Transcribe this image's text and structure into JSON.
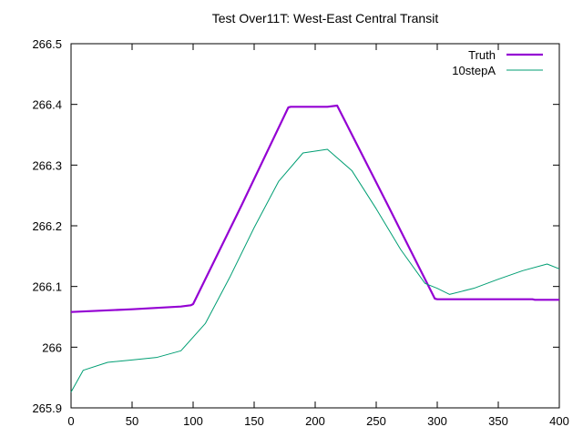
{
  "chart_data": {
    "type": "line",
    "title": "Test Over11T: West-East Central Transit",
    "xlabel": "",
    "ylabel": "",
    "xlim": [
      0,
      400
    ],
    "ylim": [
      265.9,
      266.5
    ],
    "x_ticks": [
      "0",
      "50",
      "100",
      "150",
      "200",
      "250",
      "300",
      "350",
      "400"
    ],
    "y_ticks": [
      "265.9",
      "266",
      "266.1",
      "266.2",
      "266.3",
      "266.4",
      "266.5"
    ],
    "grid": false,
    "legend_position": "top-right",
    "series": [
      {
        "name": "Truth",
        "color": "#9400d3",
        "points": [
          [
            0,
            266.058
          ],
          [
            50,
            266.0625
          ],
          [
            90,
            266.067
          ],
          [
            98,
            266.069
          ],
          [
            100,
            266.071
          ],
          [
            140,
            266.235
          ],
          [
            178,
            266.395
          ],
          [
            180,
            266.396
          ],
          [
            200,
            266.396
          ],
          [
            210,
            266.396
          ],
          [
            218,
            266.398
          ],
          [
            260,
            266.232
          ],
          [
            298,
            266.08
          ],
          [
            300,
            266.079
          ],
          [
            378,
            266.079
          ],
          [
            380,
            266.078
          ],
          [
            400,
            266.078
          ]
        ]
      },
      {
        "name": "10stepA",
        "color": "#009e73",
        "points": [
          [
            0,
            265.926
          ],
          [
            10,
            265.962
          ],
          [
            30,
            265.975
          ],
          [
            50,
            265.979
          ],
          [
            70,
            265.983
          ],
          [
            90,
            265.994
          ],
          [
            110,
            266.039
          ],
          [
            130,
            266.115
          ],
          [
            150,
            266.197
          ],
          [
            170,
            266.273
          ],
          [
            190,
            266.32
          ],
          [
            210,
            266.326
          ],
          [
            230,
            266.291
          ],
          [
            250,
            266.228
          ],
          [
            270,
            266.161
          ],
          [
            290,
            266.105
          ],
          [
            300,
            266.097
          ],
          [
            310,
            266.087
          ],
          [
            330,
            266.097
          ],
          [
            350,
            266.112
          ],
          [
            370,
            266.126
          ],
          [
            390,
            266.137
          ],
          [
            400,
            266.129
          ]
        ]
      }
    ]
  }
}
